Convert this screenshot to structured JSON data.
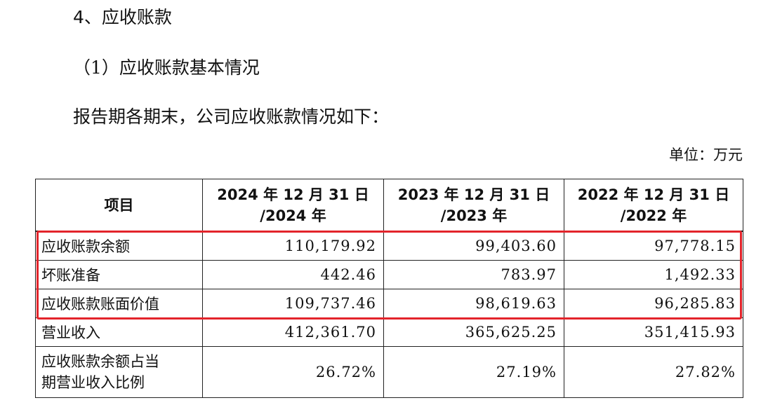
{
  "heading": "4、应收账款",
  "subheading": "（1）应收账款基本情况",
  "intro": "报告期各期末，公司应收账款情况如下：",
  "unit": "单位：万元",
  "table": {
    "headers": [
      {
        "line1": "项目",
        "line2": ""
      },
      {
        "line1": "2024 年 12 月 31 日",
        "line2": "/2024 年"
      },
      {
        "line1": "2023 年 12 月 31 日",
        "line2": "/2023 年"
      },
      {
        "line1": "2022 年 12 月 31 日",
        "line2": "/2022 年"
      }
    ],
    "rows": [
      {
        "label": "应收账款余额",
        "values": [
          "110,179.92",
          "99,403.60",
          "97,778.15"
        ],
        "highlighted": true
      },
      {
        "label": "坏账准备",
        "values": [
          "442.46",
          "783.97",
          "1,492.33"
        ],
        "highlighted": true
      },
      {
        "label": "应收账款账面价值",
        "values": [
          "109,737.46",
          "98,619.63",
          "96,285.83"
        ],
        "highlighted": true
      },
      {
        "label": "营业收入",
        "values": [
          "412,361.70",
          "365,625.25",
          "351,415.93"
        ],
        "highlighted": false
      },
      {
        "label_line1": "应收账款余额占当",
        "label_line2": "期营业收入比例",
        "values": [
          "26.72%",
          "27.19%",
          "27.82%"
        ],
        "highlighted": false
      }
    ]
  },
  "colors": {
    "highlight_border": "#e3242b",
    "table_border": "#222222",
    "text": "#111111"
  }
}
